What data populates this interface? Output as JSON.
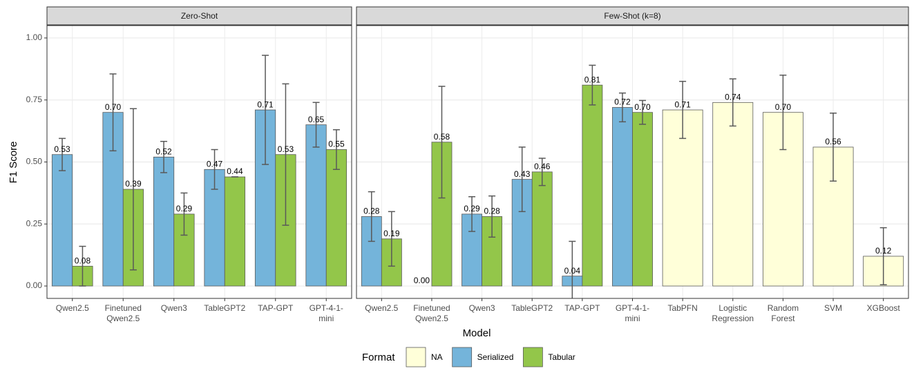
{
  "y_label": "F1 Score",
  "x_label": "Model",
  "legend": {
    "title": "Format",
    "position": "bottom"
  },
  "chart_data": [
    {
      "type": "bar",
      "title": "Zero-Shot",
      "categories": [
        "Qwen2.5",
        "Finetuned\nQwen2.5",
        "Qwen3",
        "TableGPT2",
        "TAP-GPT",
        "GPT-4-1-\nmini"
      ],
      "ylim": [
        -0.05,
        1.05
      ],
      "yticks": [
        {
          "value": 0,
          "label": "0.00"
        },
        0.25,
        {
          "value": 0.5,
          "label": "0.50"
        },
        0.75,
        {
          "value": 1,
          "label": "1.00"
        }
      ],
      "grid": true,
      "series": [
        {
          "name": "Serialized",
          "color": "#74b4da",
          "values": [
            0.53,
            0.7,
            0.52,
            0.47,
            0.71,
            0.65
          ],
          "value_labels": [
            "0.53",
            "0.70",
            "0.52",
            "0.47",
            "0.71",
            "0.65"
          ],
          "errors": [
            0.065,
            0.155,
            0.063,
            0.08,
            0.22,
            0.09
          ]
        },
        {
          "name": "Tabular",
          "color": "#93c64a",
          "values": [
            0.08,
            0.39,
            0.29,
            0.44,
            0.53,
            0.55
          ],
          "value_labels": [
            "0.08",
            "0.39",
            "0.29",
            "0.44",
            "0.53",
            "0.55"
          ],
          "errors": [
            0.08,
            0.325,
            0.085,
            0,
            0.285,
            0.08
          ]
        }
      ]
    },
    {
      "type": "bar",
      "title": "Few-Shot (k=8)",
      "categories": [
        "Qwen2.5",
        "Finetuned\nQwen2.5",
        "Qwen3",
        "TableGPT2",
        "TAP-GPT",
        "GPT-4-1-\nmini",
        "TabPFN",
        "Logistic\nRegression",
        "Random\nForest",
        "SVM",
        "XGBoost"
      ],
      "ylim": [
        -0.05,
        1.05
      ],
      "yticks": [
        {
          "value": 0,
          "label": "0.00"
        },
        0.25,
        {
          "value": 0.5,
          "label": "0.50"
        },
        0.75,
        {
          "value": 1,
          "label": "1.00"
        }
      ],
      "grid": true,
      "series": [
        {
          "name": "NA",
          "color": "#ffffd9",
          "values": [
            null,
            null,
            null,
            null,
            null,
            null,
            0.71,
            0.74,
            0.7,
            0.56,
            0.12
          ],
          "value_labels": [
            null,
            null,
            null,
            null,
            null,
            null,
            "0.71",
            "0.74",
            "0.70",
            "0.56",
            "0.12"
          ],
          "errors": [
            null,
            null,
            null,
            null,
            null,
            null,
            0.115,
            0.095,
            0.15,
            0.137,
            0.115
          ]
        },
        {
          "name": "Serialized",
          "color": "#74b4da",
          "values": [
            0.28,
            0,
            0.29,
            0.43,
            0.04,
            0.72,
            null,
            null,
            null,
            null,
            null
          ],
          "value_labels": [
            "0.28",
            "0.00",
            "0.29",
            "0.43",
            "0.04",
            "0.72",
            null,
            null,
            null,
            null,
            null
          ],
          "errors": [
            0.1,
            null,
            0.07,
            0.13,
            0.14,
            0.058,
            null,
            null,
            null,
            null,
            null
          ]
        },
        {
          "name": "Tabular",
          "color": "#93c64a",
          "values": [
            0.19,
            0.58,
            0.28,
            0.46,
            0.81,
            0.7,
            null,
            null,
            null,
            null,
            null
          ],
          "value_labels": [
            "0.19",
            "0.58",
            "0.28",
            "0.46",
            "0.81",
            "0.70",
            null,
            null,
            null,
            null,
            null
          ],
          "errors": [
            0.11,
            0.225,
            0.083,
            0.055,
            0.08,
            0.048,
            null,
            null,
            null,
            null,
            null
          ]
        }
      ]
    }
  ]
}
